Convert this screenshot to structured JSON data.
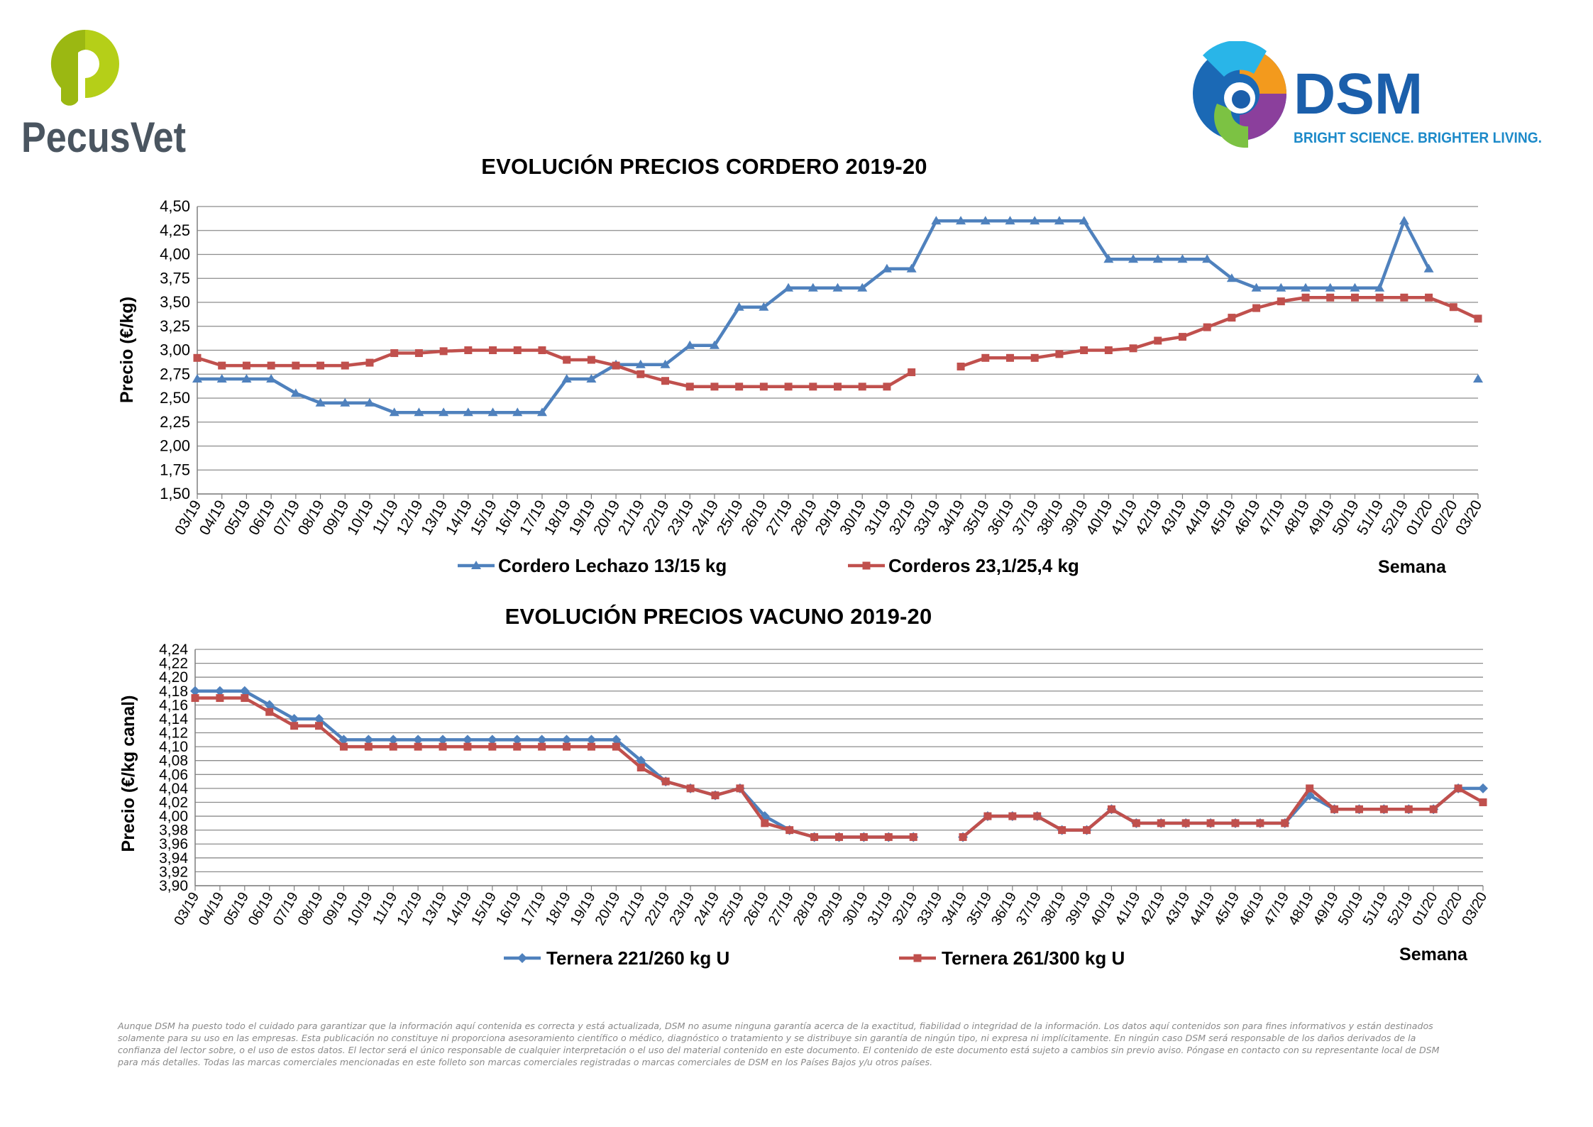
{
  "logos": {
    "pecusvet": {
      "text": "PecusVet",
      "green": "#b5cf18",
      "gray": "#4a5560"
    },
    "dsm": {
      "text": "DSM",
      "tagline": "BRIGHT SCIENCE. BRIGHTER LIVING.",
      "blue": "#1b5fab",
      "tagline_color": "#1d8ac9"
    }
  },
  "chart_data": [
    {
      "type": "line",
      "title": "EVOLUCIÓN PRECIOS CORDERO 2019-20",
      "ylabel": "Precio (€/kg)",
      "xlabel": "Semana",
      "ylim": [
        1.5,
        4.5
      ],
      "yticks": [
        "1,50",
        "1,75",
        "2,00",
        "2,25",
        "2,50",
        "2,75",
        "3,00",
        "3,25",
        "3,50",
        "3,75",
        "4,00",
        "4,25",
        "4,50"
      ],
      "grid": true,
      "legend": "bottom",
      "categories": [
        "03/19",
        "04/19",
        "05/19",
        "06/19",
        "07/19",
        "08/19",
        "09/19",
        "10/19",
        "11/19",
        "12/19",
        "13/19",
        "14/19",
        "15/19",
        "16/19",
        "17/19",
        "18/19",
        "19/19",
        "20/19",
        "21/19",
        "22/19",
        "23/19",
        "24/19",
        "25/19",
        "26/19",
        "27/19",
        "28/19",
        "29/19",
        "30/19",
        "31/19",
        "32/19",
        "33/19",
        "34/19",
        "35/19",
        "36/19",
        "37/19",
        "38/19",
        "39/19",
        "40/19",
        "41/19",
        "42/19",
        "43/19",
        "44/19",
        "45/19",
        "46/19",
        "47/19",
        "48/19",
        "49/19",
        "50/19",
        "51/19",
        "52/19",
        "01/20",
        "02/20",
        "03/20"
      ],
      "series": [
        {
          "name": "Cordero Lechazo 13/15 kg",
          "color": "#4f81bd",
          "marker": "triangle",
          "values": [
            2.7,
            2.7,
            2.7,
            2.7,
            2.55,
            2.45,
            2.45,
            2.45,
            2.35,
            2.35,
            2.35,
            2.35,
            2.35,
            2.35,
            2.35,
            2.7,
            2.7,
            2.85,
            2.85,
            2.85,
            3.05,
            3.05,
            3.45,
            3.45,
            3.65,
            3.65,
            3.65,
            3.65,
            3.85,
            3.85,
            4.35,
            4.35,
            4.35,
            4.35,
            4.35,
            4.35,
            4.35,
            3.95,
            3.95,
            3.95,
            3.95,
            3.95,
            3.75,
            3.65,
            3.65,
            3.65,
            3.65,
            3.65,
            3.65,
            4.35,
            3.85,
            null,
            2.7
          ]
        },
        {
          "name": "Corderos 23,1/25,4 kg",
          "color": "#c0504d",
          "marker": "square",
          "values": [
            2.92,
            2.84,
            2.84,
            2.84,
            2.84,
            2.84,
            2.84,
            2.87,
            2.97,
            2.97,
            2.99,
            3.0,
            3.0,
            3.0,
            3.0,
            2.9,
            2.9,
            2.84,
            2.75,
            2.68,
            2.62,
            2.62,
            2.62,
            2.62,
            2.62,
            2.62,
            2.62,
            2.62,
            2.62,
            2.77,
            null,
            2.83,
            2.92,
            2.92,
            2.92,
            2.96,
            3.0,
            3.0,
            3.02,
            3.1,
            3.14,
            3.24,
            3.34,
            3.44,
            3.51,
            3.55,
            3.55,
            3.55,
            3.55,
            3.55,
            3.55,
            3.45,
            3.33
          ]
        }
      ]
    },
    {
      "type": "line",
      "title": "EVOLUCIÓN PRECIOS VACUNO 2019-20",
      "ylabel": "Precio (€/kg canal)",
      "xlabel": "Semana",
      "ylim": [
        3.9,
        4.24
      ],
      "yticks": [
        "3,90",
        "3,92",
        "3,94",
        "3,96",
        "3,98",
        "4,00",
        "4,02",
        "4,04",
        "4,06",
        "4,08",
        "4,10",
        "4,12",
        "4,14",
        "4,16",
        "4,18",
        "4,20",
        "4,22",
        "4,24"
      ],
      "grid": true,
      "legend": "bottom",
      "categories": [
        "03/19",
        "04/19",
        "05/19",
        "06/19",
        "07/19",
        "08/19",
        "09/19",
        "10/19",
        "11/19",
        "12/19",
        "13/19",
        "14/19",
        "15/19",
        "16/19",
        "17/19",
        "18/19",
        "19/19",
        "20/19",
        "21/19",
        "22/19",
        "23/19",
        "24/19",
        "25/19",
        "26/19",
        "27/19",
        "28/19",
        "29/19",
        "30/19",
        "31/19",
        "32/19",
        "33/19",
        "34/19",
        "35/19",
        "36/19",
        "37/19",
        "38/19",
        "39/19",
        "40/19",
        "41/19",
        "42/19",
        "43/19",
        "44/19",
        "45/19",
        "46/19",
        "47/19",
        "48/19",
        "49/19",
        "50/19",
        "51/19",
        "52/19",
        "01/20",
        "02/20",
        "03/20"
      ],
      "series": [
        {
          "name": "Ternera 221/260 kg U",
          "color": "#4f81bd",
          "marker": "diamond",
          "values": [
            4.18,
            4.18,
            4.18,
            4.16,
            4.14,
            4.14,
            4.11,
            4.11,
            4.11,
            4.11,
            4.11,
            4.11,
            4.11,
            4.11,
            4.11,
            4.11,
            4.11,
            4.11,
            4.08,
            4.05,
            4.04,
            4.03,
            4.04,
            4.0,
            3.98,
            3.97,
            3.97,
            3.97,
            3.97,
            3.97,
            null,
            3.97,
            4.0,
            4.0,
            4.0,
            3.98,
            3.98,
            4.01,
            3.99,
            3.99,
            3.99,
            3.99,
            3.99,
            3.99,
            3.99,
            4.03,
            4.01,
            4.01,
            4.01,
            4.01,
            4.01,
            4.04,
            4.04
          ]
        },
        {
          "name": "Ternera 261/300 kg U",
          "color": "#c0504d",
          "marker": "square",
          "values": [
            4.17,
            4.17,
            4.17,
            4.15,
            4.13,
            4.13,
            4.1,
            4.1,
            4.1,
            4.1,
            4.1,
            4.1,
            4.1,
            4.1,
            4.1,
            4.1,
            4.1,
            4.1,
            4.07,
            4.05,
            4.04,
            4.03,
            4.04,
            3.99,
            3.98,
            3.97,
            3.97,
            3.97,
            3.97,
            3.97,
            null,
            3.97,
            4.0,
            4.0,
            4.0,
            3.98,
            3.98,
            4.01,
            3.99,
            3.99,
            3.99,
            3.99,
            3.99,
            3.99,
            3.99,
            4.04,
            4.01,
            4.01,
            4.01,
            4.01,
            4.01,
            4.04,
            4.02
          ]
        }
      ]
    }
  ],
  "disclaimer": "Aunque DSM ha puesto todo el cuidado para garantizar que la información aquí contenida es correcta y está actualizada, DSM no asume ninguna garantía acerca de la exactitud, fiabilidad o integridad de la información. Los datos aquí contenidos son para fines informativos y están destinados solamente para su uso en las empresas. Esta publicación no constituye ni proporciona asesoramiento científico o médico, diagnóstico o tratamiento y se distribuye sin garantía de ningún tipo, ni expresa ni implícitamente. En ningún caso DSM será responsable de los daños derivados de la confianza del lector sobre, o el uso de estos datos. El lector será el único responsable de cualquier interpretación o el uso del material contenido en este documento. El contenido de este documento está sujeto a cambios sin previo aviso. Póngase en contacto con su representante local de DSM para más detalles. Todas las marcas comerciales mencionadas en este folleto son marcas comerciales registradas o marcas comerciales de DSM en los Países Bajos y/u otros países."
}
